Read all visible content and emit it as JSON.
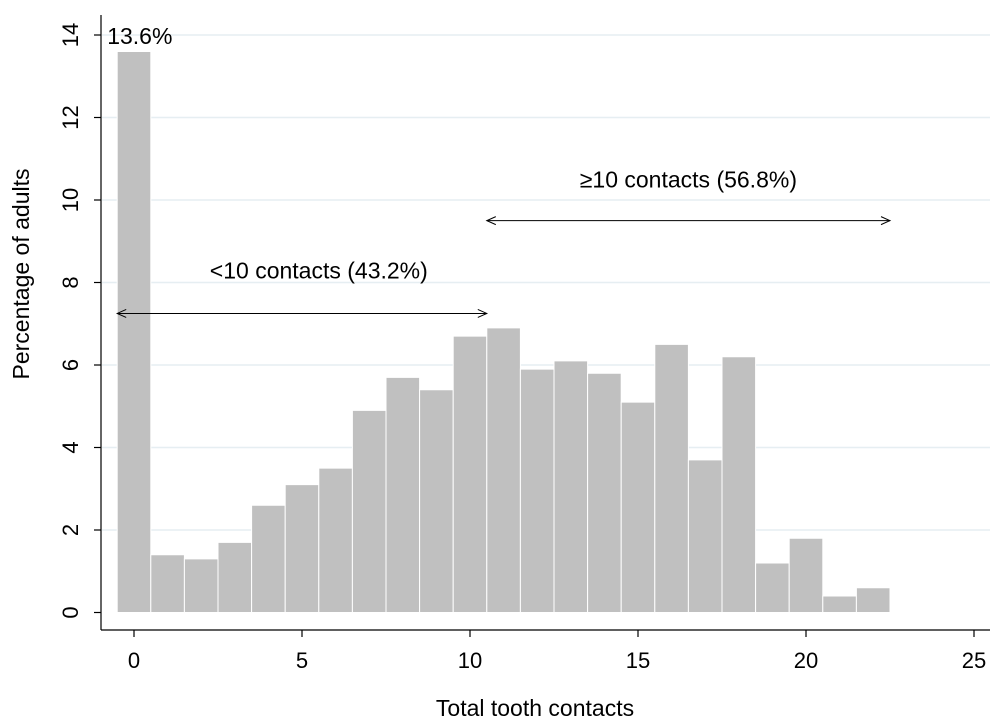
{
  "chart_data": {
    "type": "bar",
    "title": "",
    "xlabel": "Total tooth contacts",
    "ylabel": "Percentage of adults",
    "xlim": [
      -0.5,
      25.5
    ],
    "ylim": [
      0,
      14
    ],
    "xticks": [
      0,
      5,
      10,
      15,
      20,
      25
    ],
    "yticks": [
      0,
      2,
      4,
      6,
      8,
      10,
      12,
      14
    ],
    "grid": "horizontal",
    "bar_color": "#c0c0c0",
    "bar_edge_color": "#ffffff",
    "grid_color": "#e6eef2",
    "bins": [
      {
        "x": 0,
        "value": 13.6
      },
      {
        "x": 1,
        "value": 1.4
      },
      {
        "x": 2,
        "value": 1.3
      },
      {
        "x": 3,
        "value": 1.7
      },
      {
        "x": 4,
        "value": 2.6
      },
      {
        "x": 5,
        "value": 3.1
      },
      {
        "x": 6,
        "value": 3.5
      },
      {
        "x": 7,
        "value": 4.9
      },
      {
        "x": 8,
        "value": 5.7
      },
      {
        "x": 9,
        "value": 5.4
      },
      {
        "x": 10,
        "value": 6.7
      },
      {
        "x": 11,
        "value": 6.9
      },
      {
        "x": 12,
        "value": 5.9
      },
      {
        "x": 13,
        "value": 6.1
      },
      {
        "x": 14,
        "value": 5.8
      },
      {
        "x": 15,
        "value": 5.1
      },
      {
        "x": 16,
        "value": 6.5
      },
      {
        "x": 17,
        "value": 3.7
      },
      {
        "x": 18,
        "value": 6.2
      },
      {
        "x": 19,
        "value": 1.2
      },
      {
        "x": 20,
        "value": 1.8
      },
      {
        "x": 21,
        "value": 0.4
      },
      {
        "x": 22,
        "value": 0.6
      }
    ],
    "bar_label": {
      "text": "13.6%",
      "bin": 0
    },
    "annotations": [
      {
        "text": "<10 contacts (43.2%)",
        "from": -0.5,
        "to": 10.5,
        "arrow_y": 7.25,
        "text_x": 5.5,
        "text_y": 8.1
      },
      {
        "text": "≥10 contacts (56.8%)",
        "from": 10.5,
        "to": 22.5,
        "arrow_y": 9.5,
        "text_x": 16.5,
        "text_y": 10.3
      }
    ]
  }
}
